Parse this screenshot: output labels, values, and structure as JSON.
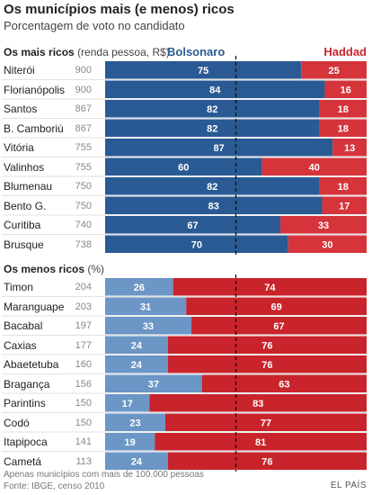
{
  "title": "Os municípios mais (e menos) ricos",
  "subtitle": "Porcentagem de voto no candidato",
  "legend": {
    "bolsonaro": "Bolsonaro",
    "haddad": "Haddad"
  },
  "section_rich": {
    "heading": "Os mais ricos",
    "note": "(renda pessoa, R$)"
  },
  "section_poor": {
    "heading": "Os menos ricos",
    "note": "(%)"
  },
  "footer": {
    "line1": "Apenas municípios com mais de 100.000 pessoas",
    "line2": "Fonte: IBGE, censo 2010"
  },
  "brand": "EL PAÍS",
  "colors": {
    "bolsonaro_rich": "#2a5a94",
    "haddad_rich": "#d6343b",
    "bolsonaro_poor": "#6b96c6",
    "haddad_poor": "#c9242b",
    "bolsonaro_label": "#2a5a94",
    "haddad_label": "#c9242b"
  },
  "chart_data": [
    {
      "type": "bar",
      "stacked": true,
      "orientation": "horizontal",
      "title": "Os mais ricos",
      "categories": [
        "Niterói",
        "Florianópolis",
        "Santos",
        "B. Camboriú",
        "Vitória",
        "Valinhos",
        "Blumenau",
        "Bento G.",
        "Curitiba",
        "Brusque"
      ],
      "renda": [
        900,
        900,
        867,
        867,
        755,
        755,
        750,
        750,
        740,
        738
      ],
      "series": [
        {
          "name": "Bolsonaro",
          "values": [
            75,
            84,
            82,
            82,
            87,
            60,
            82,
            83,
            67,
            70
          ]
        },
        {
          "name": "Haddad",
          "values": [
            25,
            16,
            18,
            18,
            13,
            40,
            18,
            17,
            33,
            30
          ]
        }
      ],
      "reference_line": 50,
      "xlim": [
        0,
        100
      ]
    },
    {
      "type": "bar",
      "stacked": true,
      "orientation": "horizontal",
      "title": "Os menos ricos",
      "categories": [
        "Timon",
        "Maranguape",
        "Bacabal",
        "Caxias",
        "Abaetetuba",
        "Bragança",
        "Parintins",
        "Codó",
        "Itapipoca",
        "Cametá"
      ],
      "renda": [
        204,
        203,
        197,
        177,
        160,
        156,
        150,
        150,
        141,
        113
      ],
      "series": [
        {
          "name": "Bolsonaro",
          "values": [
            26,
            31,
            33,
            24,
            24,
            37,
            17,
            23,
            19,
            24
          ]
        },
        {
          "name": "Haddad",
          "values": [
            74,
            69,
            67,
            76,
            76,
            63,
            83,
            77,
            81,
            76
          ]
        }
      ],
      "reference_line": 50,
      "xlim": [
        0,
        100
      ]
    }
  ]
}
